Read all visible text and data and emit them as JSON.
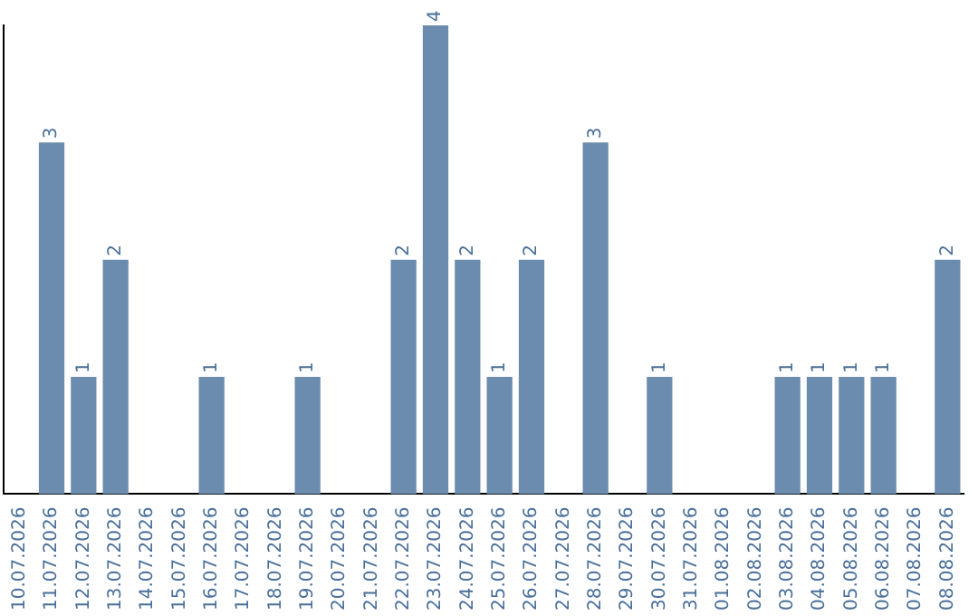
{
  "chart_data": {
    "type": "bar",
    "categories": [
      "10.07.2026",
      "11.07.2026",
      "12.07.2026",
      "13.07.2026",
      "14.07.2026",
      "15.07.2026",
      "16.07.2026",
      "17.07.2026",
      "18.07.2026",
      "19.07.2026",
      "20.07.2026",
      "21.07.2026",
      "22.07.2026",
      "23.07.2026",
      "24.07.2026",
      "25.07.2026",
      "26.07.2026",
      "27.07.2026",
      "28.07.2026",
      "29.07.2026",
      "30.07.2026",
      "31.07.2026",
      "01.08.2026",
      "02.08.2026",
      "03.08.2026",
      "04.08.2026",
      "05.08.2026",
      "06.08.2026",
      "07.08.2026",
      "08.08.2026"
    ],
    "values": [
      0,
      3,
      1,
      2,
      0,
      0,
      1,
      0,
      0,
      1,
      0,
      0,
      2,
      4,
      2,
      1,
      2,
      0,
      3,
      0,
      1,
      0,
      0,
      0,
      1,
      1,
      1,
      1,
      0,
      2
    ],
    "value_labels": [
      null,
      "3",
      "1",
      "2",
      null,
      null,
      "1",
      null,
      null,
      "1",
      null,
      null,
      "2",
      "4",
      "2",
      "1",
      "2",
      null,
      "3",
      null,
      "1",
      null,
      null,
      null,
      "1",
      "1",
      "1",
      "1",
      null,
      "2"
    ],
    "color": "#6b8cae",
    "grid": false,
    "legend": false
  }
}
